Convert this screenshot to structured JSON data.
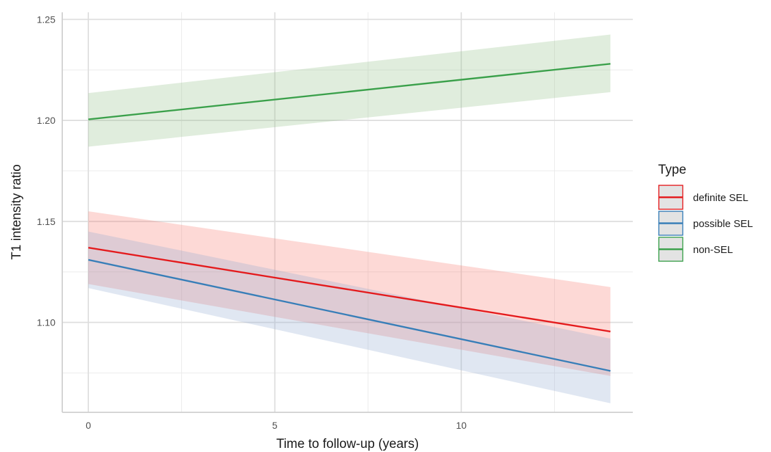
{
  "chart_data": {
    "type": "line",
    "title": "",
    "xlabel": "Time to follow-up (years)",
    "ylabel": "T1 intensity ratio",
    "xlim": [
      -0.7,
      14.6
    ],
    "ylim": [
      1.0555,
      1.2535
    ],
    "x_ticks": [
      0,
      5,
      10
    ],
    "x_tick_labels": [
      "0",
      "5",
      "10"
    ],
    "y_ticks": [
      1.1,
      1.15,
      1.2,
      1.25
    ],
    "y_tick_labels": [
      "1.10",
      "1.15",
      "1.20",
      "1.25"
    ],
    "x_minor_ticks": [
      2.5,
      7.5,
      12.5
    ],
    "y_minor_ticks": [
      1.075,
      1.125,
      1.175,
      1.225
    ],
    "grid": true,
    "legend": {
      "title": "Type",
      "position": "right",
      "entries": [
        "definite SEL",
        "possible SEL",
        "non-SEL"
      ]
    },
    "series": [
      {
        "name": "definite SEL",
        "color": "#e41a1c",
        "fill": "#f8766d",
        "x": [
          0,
          14
        ],
        "y": [
          1.137,
          1.0955
        ],
        "lower": [
          1.119,
          1.0735
        ],
        "upper": [
          1.155,
          1.1175
        ]
      },
      {
        "name": "possible SEL",
        "color": "#377eb8",
        "fill": "#8fa8cf",
        "x": [
          0,
          14
        ],
        "y": [
          1.131,
          1.076
        ],
        "lower": [
          1.117,
          1.06
        ],
        "upper": [
          1.145,
          1.092
        ]
      },
      {
        "name": "non-SEL",
        "color": "#3aa04a",
        "fill": "#8fbf86",
        "x": [
          0,
          14
        ],
        "y": [
          1.2005,
          1.228
        ],
        "lower": [
          1.187,
          1.214
        ],
        "upper": [
          1.2135,
          1.2425
        ]
      }
    ]
  }
}
